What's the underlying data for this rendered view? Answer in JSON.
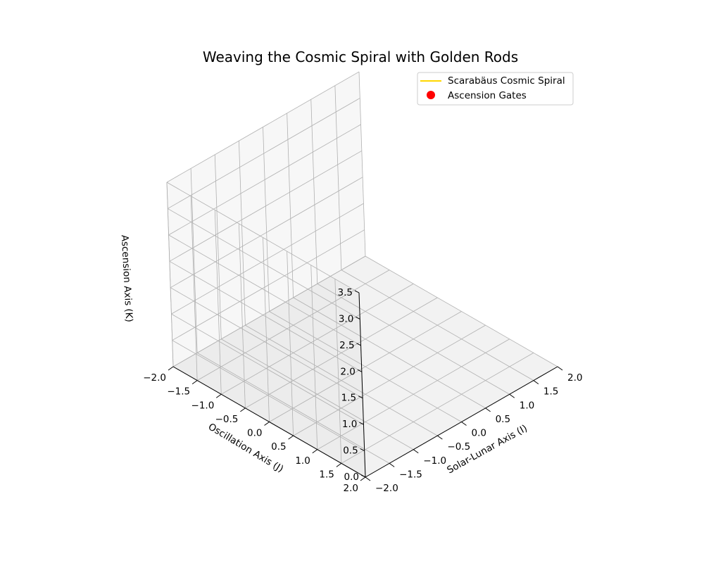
{
  "chart_data": {
    "type": "line",
    "projection": "3d",
    "title": "Weaving the Cosmic Spiral with Golden Rods",
    "xlabel": "Solar-Lunar Axis (I)",
    "ylabel": "Oscillation Axis (J)",
    "zlabel": "Ascension Axis (K)",
    "xlim": [
      -2.0,
      2.0
    ],
    "ylim": [
      -2.0,
      2.0
    ],
    "zlim": [
      0.0,
      3.5
    ],
    "x_ticks": [
      "−2.0",
      "−1.5",
      "−1.0",
      "−0.5",
      "0.0",
      "0.5",
      "1.0",
      "1.5",
      "2.0"
    ],
    "y_ticks": [
      "−2.0",
      "−1.5",
      "−1.0",
      "−0.5",
      "0.0",
      "0.5",
      "1.0",
      "1.5",
      "2.0"
    ],
    "z_ticks": [
      "0.0",
      "0.5",
      "1.0",
      "1.5",
      "2.0",
      "2.5",
      "3.0",
      "3.5"
    ],
    "grid": true,
    "legend_position": "top-right",
    "series": [
      {
        "name": "Scarabäus Cosmic Spiral",
        "kind": "line",
        "color": "#FFD700",
        "points": []
      },
      {
        "name": "Ascension Gates",
        "kind": "scatter",
        "color": "#FF0000",
        "points": []
      }
    ]
  }
}
